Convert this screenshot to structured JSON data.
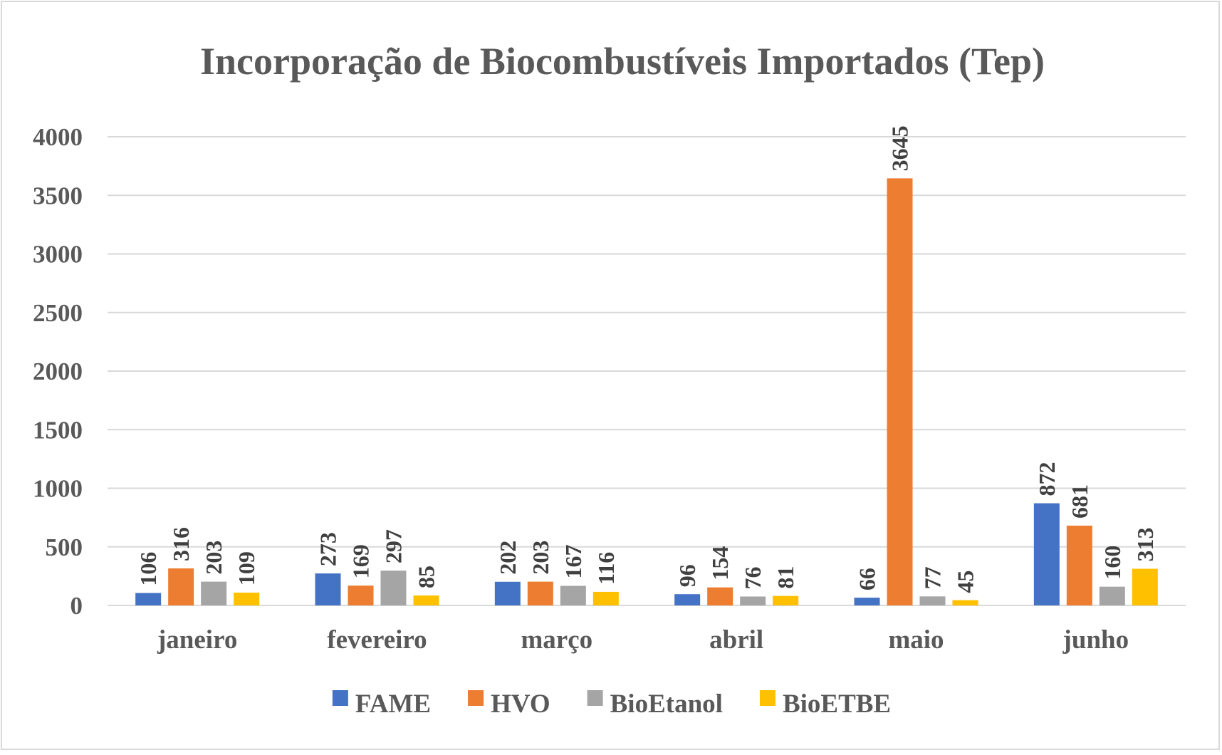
{
  "chart_data": {
    "type": "bar",
    "title": "Incorporação de Biocombustíveis Importados (Tep)",
    "xlabel": "",
    "ylabel": "",
    "ylim": [
      0,
      4000
    ],
    "yticks": [
      0,
      500,
      1000,
      1500,
      2000,
      2500,
      3000,
      3500,
      4000
    ],
    "grid": true,
    "legend_position": "bottom",
    "categories": [
      "janeiro",
      "fevereiro",
      "março",
      "abril",
      "maio",
      "junho"
    ],
    "series": [
      {
        "name": "FAME",
        "color": "#4472c4",
        "values": [
          106,
          273,
          202,
          96,
          66,
          872
        ]
      },
      {
        "name": "HVO",
        "color": "#ed7d31",
        "values": [
          316,
          169,
          203,
          154,
          3645,
          681
        ]
      },
      {
        "name": "BioEtanol",
        "color": "#a5a5a5",
        "values": [
          203,
          297,
          167,
          76,
          77,
          160
        ]
      },
      {
        "name": "BioETBE",
        "color": "#ffc000",
        "values": [
          109,
          85,
          116,
          81,
          45,
          313
        ]
      }
    ]
  }
}
